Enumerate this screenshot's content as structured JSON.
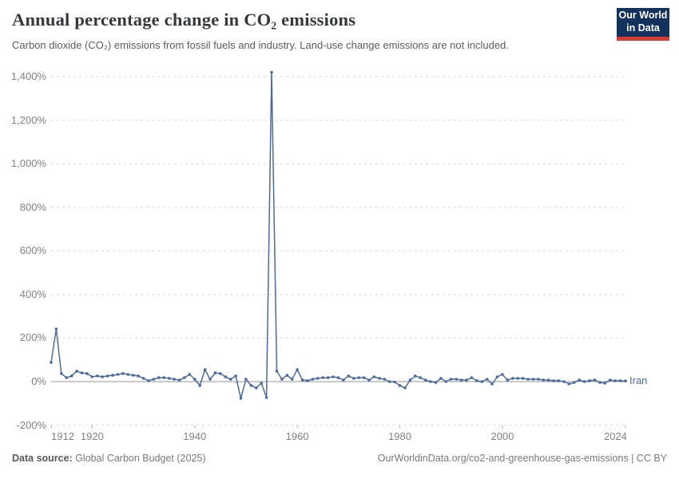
{
  "header": {
    "title": "Annual percentage change in CO₂ emissions",
    "subtitle": "Carbon dioxide (CO₂) emissions from fossil fuels and industry. Land-use change emissions are not included.",
    "logo": {
      "line1": "Our World",
      "line2": "in Data"
    }
  },
  "footer": {
    "source_label": "Data source:",
    "source_value": " Global Carbon Budget (2025)",
    "link": "OurWorldinData.org/co2-and-greenhouse-gas-emissions | CC BY"
  },
  "colors": {
    "line": "#4c6a9c",
    "grid": "#d9d9d9",
    "zero_line": "#ababab",
    "tick_text": "#828282",
    "logo_bg": "#12315b",
    "logo_stripe": "#d53c32"
  },
  "chart_data": {
    "type": "line",
    "title": "Annual percentage change in CO₂ emissions",
    "xlabel": "",
    "ylabel": "",
    "grid": "dashed-horizontal",
    "legend_position": "end-of-line",
    "xlim": [
      1912,
      2024
    ],
    "ylim": [
      -200,
      1450
    ],
    "x_ticks": [
      "1912",
      "1920",
      "1940",
      "1960",
      "1980",
      "2000",
      "2024"
    ],
    "y_ticks": [
      {
        "value": 1400,
        "label": "1,400%"
      },
      {
        "value": 1200,
        "label": "1,200%"
      },
      {
        "value": 1000,
        "label": "1,000%"
      },
      {
        "value": 800,
        "label": "800%"
      },
      {
        "value": 600,
        "label": "600%"
      },
      {
        "value": 400,
        "label": "400%"
      },
      {
        "value": 200,
        "label": "200%"
      },
      {
        "value": 0,
        "label": "0%"
      },
      {
        "value": -200,
        "label": "-200%"
      }
    ],
    "series": [
      {
        "name": "Iran",
        "color": "#4c6a9c",
        "years": [
          1912,
          1913,
          1914,
          1915,
          1916,
          1917,
          1918,
          1919,
          1920,
          1921,
          1922,
          1923,
          1924,
          1925,
          1926,
          1927,
          1928,
          1929,
          1930,
          1931,
          1932,
          1933,
          1934,
          1935,
          1936,
          1937,
          1938,
          1939,
          1940,
          1941,
          1942,
          1943,
          1944,
          1945,
          1946,
          1947,
          1948,
          1949,
          1950,
          1951,
          1952,
          1953,
          1954,
          1955,
          1956,
          1957,
          1958,
          1959,
          1960,
          1961,
          1962,
          1963,
          1964,
          1965,
          1966,
          1967,
          1968,
          1969,
          1970,
          1971,
          1972,
          1973,
          1974,
          1975,
          1976,
          1977,
          1978,
          1979,
          1980,
          1981,
          1982,
          1983,
          1984,
          1985,
          1986,
          1987,
          1988,
          1989,
          1990,
          1991,
          1992,
          1993,
          1994,
          1995,
          1996,
          1997,
          1998,
          1999,
          2000,
          2001,
          2002,
          2003,
          2004,
          2005,
          2006,
          2007,
          2008,
          2009,
          2010,
          2011,
          2012,
          2013,
          2014,
          2015,
          2016,
          2017,
          2018,
          2019,
          2020,
          2021,
          2022,
          2023,
          2024
        ],
        "values": [
          88,
          242,
          37,
          18,
          26,
          48,
          40,
          37,
          22,
          26,
          22,
          26,
          29,
          33,
          37,
          33,
          29,
          26,
          15,
          4,
          11,
          18,
          18,
          15,
          11,
          7,
          18,
          33,
          11,
          -18,
          55,
          11,
          40,
          37,
          22,
          11,
          26,
          -77,
          11,
          -18,
          -29,
          -7,
          -73,
          1420,
          48,
          11,
          29,
          11,
          55,
          7,
          4,
          11,
          15,
          18,
          18,
          22,
          18,
          7,
          26,
          15,
          18,
          18,
          7,
          22,
          15,
          11,
          0,
          -2,
          -18,
          -29,
          7,
          26,
          18,
          7,
          0,
          -4,
          15,
          0,
          11,
          11,
          7,
          7,
          18,
          4,
          0,
          11,
          -11,
          22,
          33,
          7,
          15,
          15,
          15,
          11,
          11,
          11,
          7,
          7,
          4,
          4,
          0,
          -11,
          -4,
          7,
          0,
          4,
          7,
          -4,
          -7,
          7,
          4,
          4,
          3
        ]
      }
    ]
  }
}
